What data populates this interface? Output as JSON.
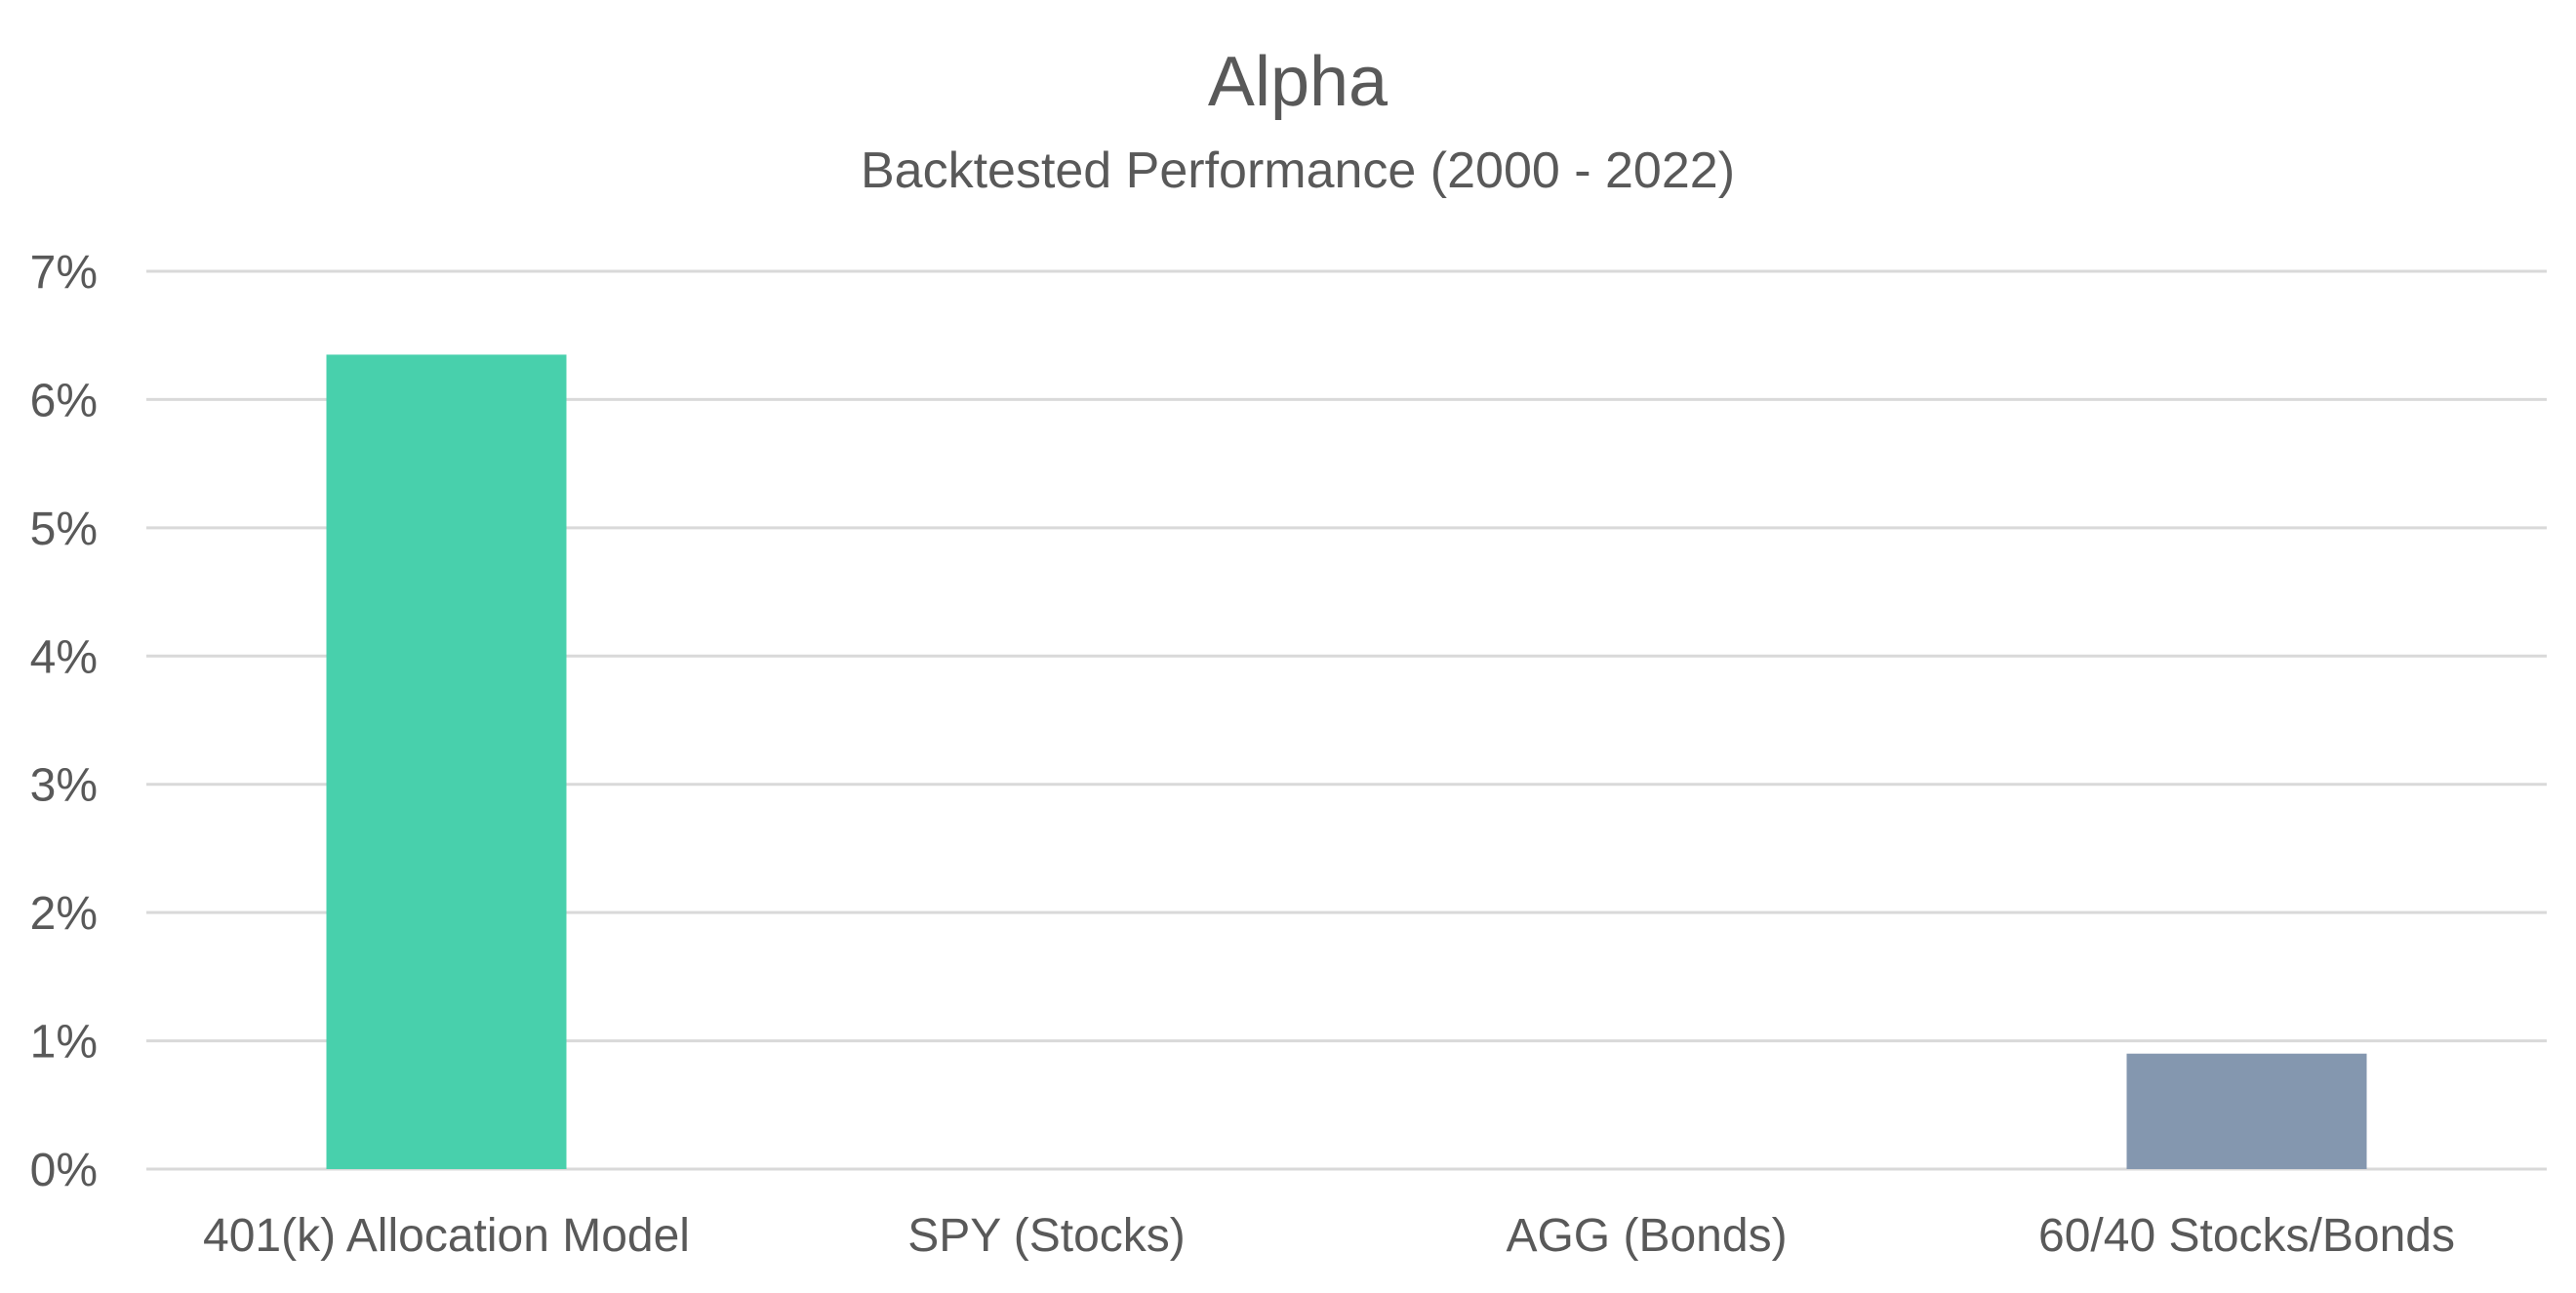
{
  "chart_data": {
    "type": "bar",
    "title": "Alpha",
    "subtitle": "Backtested Performance (2000 - 2022)",
    "categories": [
      "401(k) Allocation Model",
      "SPY (Stocks)",
      "AGG (Bonds)",
      "60/40 Stocks/Bonds"
    ],
    "values": [
      0.0635,
      0,
      0,
      0.009
    ],
    "bar_colors": [
      "#48D0AC",
      "#48D0AC",
      "#48D0AC",
      "#8497AF"
    ],
    "ylim": [
      0,
      0.07
    ],
    "y_ticks": [
      0,
      0.01,
      0.02,
      0.03,
      0.04,
      0.05,
      0.06,
      0.07
    ],
    "y_tick_labels": [
      "0%",
      "1%",
      "2%",
      "3%",
      "4%",
      "5%",
      "6%",
      "7%"
    ],
    "xlabel": "",
    "ylabel": "",
    "grid": true,
    "legend": "none"
  },
  "colors": {
    "text": "#595959",
    "gridline": "#D9D9D9",
    "background": "#FFFFFF"
  }
}
